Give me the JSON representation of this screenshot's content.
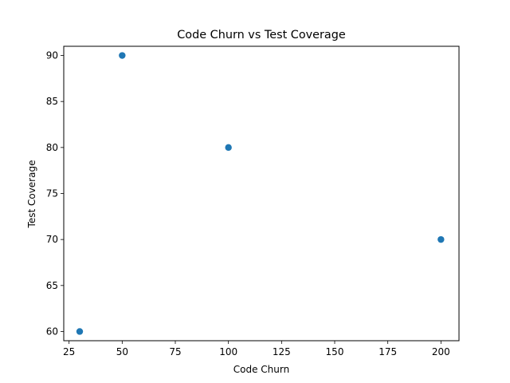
{
  "chart_data": {
    "type": "scatter",
    "title": "Code Churn vs Test Coverage",
    "xlabel": "Code Churn",
    "ylabel": "Test Coverage",
    "xlim": [
      22.5,
      208.5
    ],
    "ylim": [
      59,
      91
    ],
    "xticks": [
      "25",
      "50",
      "75",
      "100",
      "125",
      "150",
      "175",
      "200"
    ],
    "yticks": [
      "60",
      "65",
      "70",
      "75",
      "80",
      "85",
      "90"
    ],
    "grid": false,
    "points": [
      {
        "x": 50,
        "y": 90
      },
      {
        "x": 100,
        "y": 80
      },
      {
        "x": 200,
        "y": 70
      },
      {
        "x": 30,
        "y": 60
      }
    ],
    "marker_color": "#1f77b4"
  }
}
